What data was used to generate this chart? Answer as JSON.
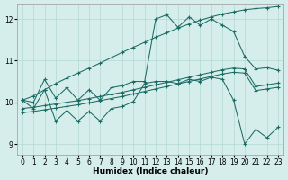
{
  "xlabel": "Humidex (Indice chaleur)",
  "bg_color": "#d5eeeb",
  "line_color": "#1a6b63",
  "grid_color": "#b5d8d4",
  "xlim": [
    -0.5,
    23.5
  ],
  "ylim": [
    8.75,
    12.35
  ],
  "yticks": [
    9,
    10,
    11,
    12
  ],
  "xticks": [
    0,
    1,
    2,
    3,
    4,
    5,
    6,
    7,
    8,
    9,
    10,
    11,
    12,
    13,
    14,
    15,
    16,
    17,
    18,
    19,
    20,
    21,
    22,
    23
  ],
  "series": [
    {
      "x": [
        0,
        1,
        2,
        3,
        4,
        5,
        6,
        7,
        8,
        9,
        10,
        11,
        12,
        13,
        14,
        15,
        16,
        17,
        18,
        19,
        20,
        21,
        22,
        23
      ],
      "y": [
        10.05,
        10.15,
        10.3,
        10.45,
        10.58,
        10.7,
        10.82,
        10.94,
        11.07,
        11.2,
        11.32,
        11.44,
        11.56,
        11.67,
        11.78,
        11.88,
        11.97,
        12.05,
        12.12,
        12.17,
        12.22,
        12.25,
        12.27,
        12.3
      ]
    },
    {
      "x": [
        0,
        1,
        2,
        3,
        4,
        5,
        6,
        7,
        8,
        9,
        10,
        11,
        12,
        13,
        14,
        15,
        16,
        17,
        18,
        19,
        20,
        21,
        22,
        23
      ],
      "y": [
        10.05,
        10.0,
        10.55,
        10.1,
        10.35,
        10.05,
        10.3,
        10.05,
        10.35,
        10.4,
        10.5,
        10.5,
        12.0,
        12.1,
        11.8,
        12.05,
        11.85,
        12.0,
        11.85,
        11.7,
        11.1,
        10.8,
        10.83,
        10.77
      ]
    },
    {
      "comment": "Zigzag with dips to ~9.5 x=0-11, flat ~10.5 x=12-19, drops ~9 at x=20-23",
      "x": [
        0,
        1,
        2,
        3,
        4,
        5,
        6,
        7,
        8,
        9,
        10,
        11,
        12,
        13,
        14,
        15,
        16,
        17,
        18,
        19,
        20,
        21,
        22,
        23
      ],
      "y": [
        10.05,
        9.85,
        10.3,
        9.55,
        9.8,
        9.55,
        9.78,
        9.55,
        9.85,
        9.9,
        10.02,
        10.45,
        10.5,
        10.5,
        10.45,
        10.55,
        10.5,
        10.6,
        10.55,
        10.05,
        9.0,
        9.35,
        9.15,
        9.4
      ]
    },
    {
      "x": [
        0,
        1,
        2,
        3,
        4,
        5,
        6,
        7,
        8,
        9,
        10,
        11,
        12,
        13,
        14,
        15,
        16,
        17,
        18,
        19,
        20,
        21,
        22,
        23
      ],
      "y": [
        9.85,
        9.88,
        9.92,
        9.96,
        10.0,
        10.04,
        10.09,
        10.14,
        10.19,
        10.24,
        10.3,
        10.36,
        10.42,
        10.48,
        10.54,
        10.6,
        10.66,
        10.72,
        10.78,
        10.82,
        10.8,
        10.38,
        10.42,
        10.46
      ]
    },
    {
      "x": [
        0,
        1,
        2,
        3,
        4,
        5,
        6,
        7,
        8,
        9,
        10,
        11,
        12,
        13,
        14,
        15,
        16,
        17,
        18,
        19,
        20,
        21,
        22,
        23
      ],
      "y": [
        9.75,
        9.78,
        9.82,
        9.86,
        9.9,
        9.94,
        9.99,
        10.04,
        10.09,
        10.14,
        10.2,
        10.26,
        10.32,
        10.38,
        10.44,
        10.5,
        10.56,
        10.62,
        10.68,
        10.72,
        10.7,
        10.28,
        10.32,
        10.36
      ]
    }
  ]
}
